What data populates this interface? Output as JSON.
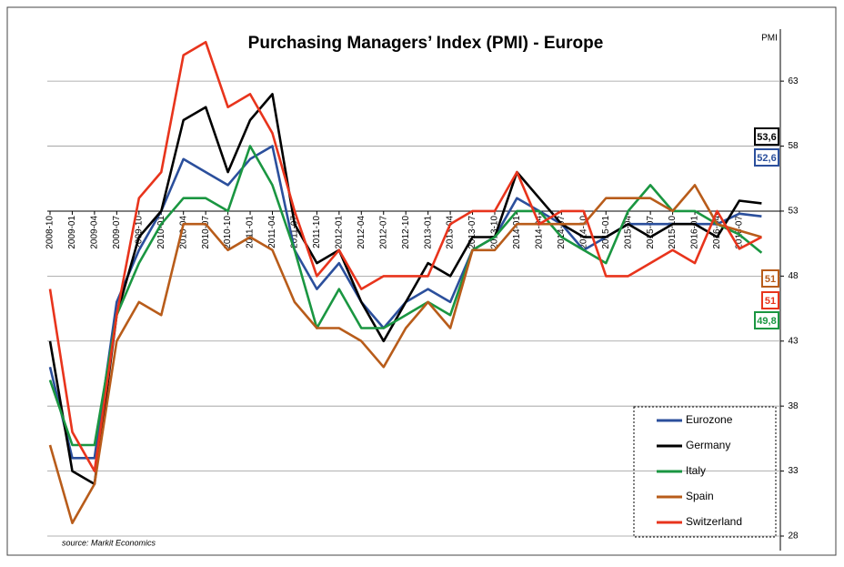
{
  "chart_data": {
    "type": "line",
    "title": "Purchasing Managers’ Index (PMI) - Europe",
    "y_label": "PMI",
    "source": "source:  Markit Economics",
    "categories": [
      "2008-10",
      "2009-01",
      "2009-04",
      "2009-07",
      "2009-10",
      "2010-01",
      "2010-04",
      "2010-07",
      "2010-10",
      "2011-01",
      "2011-04",
      "2011-07",
      "2011-10",
      "2012-01",
      "2012-04",
      "2012-07",
      "2012-10",
      "2013-01",
      "2013-04",
      "2013-07",
      "2013-10",
      "2014-01",
      "2014-04",
      "2014-07",
      "2014-10",
      "2015-01",
      "2015-04",
      "2015-07",
      "2015-10",
      "2016-01",
      "2016-04",
      "2016-07",
      null
    ],
    "series": [
      {
        "name": "Eurozone",
        "color": "#2b4f9c",
        "values": [
          41,
          34,
          34,
          46,
          50,
          53,
          57,
          56,
          55,
          57,
          58,
          50,
          47,
          49,
          46,
          44,
          46,
          47,
          46,
          50,
          51,
          54,
          53,
          52,
          50,
          51,
          52,
          52,
          52,
          52,
          52,
          52.8,
          52.6
        ],
        "value_labels": [
          null,
          null,
          null,
          null,
          null,
          null,
          null,
          null,
          null,
          null,
          null,
          null,
          null,
          null,
          null,
          null,
          null,
          null,
          null,
          null,
          null,
          null,
          null,
          null,
          null,
          null,
          null,
          null,
          null,
          null,
          null,
          null,
          "52,6"
        ]
      },
      {
        "name": "Germany",
        "color": "#000000",
        "values": [
          43,
          33,
          32,
          45,
          51,
          53,
          60,
          61,
          56,
          60,
          62,
          52,
          49,
          50,
          46,
          43,
          46,
          49,
          48,
          51,
          51,
          56,
          54,
          52,
          51,
          51,
          52,
          51,
          52,
          52,
          51,
          53.8,
          53.6
        ],
        "value_labels": [
          null,
          null,
          null,
          null,
          null,
          null,
          null,
          null,
          null,
          null,
          null,
          null,
          null,
          null,
          null,
          null,
          null,
          null,
          null,
          null,
          null,
          null,
          null,
          null,
          null,
          null,
          null,
          null,
          null,
          null,
          null,
          null,
          "53,6"
        ]
      },
      {
        "name": "Italy",
        "color": "#1a9641",
        "values": [
          40,
          35,
          35,
          45,
          49,
          52,
          54,
          54,
          53,
          58,
          55,
          50,
          44,
          47,
          44,
          44,
          45,
          46,
          45,
          50,
          51,
          53,
          53,
          51,
          50,
          49,
          53,
          55,
          53,
          53,
          52,
          51.2,
          49.8
        ],
        "value_labels": [
          null,
          null,
          null,
          null,
          null,
          null,
          null,
          null,
          null,
          null,
          null,
          null,
          null,
          null,
          null,
          null,
          null,
          null,
          null,
          null,
          null,
          null,
          null,
          null,
          null,
          null,
          null,
          null,
          null,
          null,
          null,
          null,
          "49,8"
        ]
      },
      {
        "name": "Spain",
        "color": "#b85c1a",
        "values": [
          35,
          29,
          32,
          43,
          46,
          45,
          52,
          52,
          50,
          51,
          50,
          46,
          44,
          44,
          43,
          41,
          44,
          46,
          44,
          50,
          50,
          52,
          52,
          52,
          52,
          54,
          54,
          54,
          53,
          55,
          52,
          51.5,
          51
        ],
        "value_labels": [
          null,
          null,
          null,
          null,
          null,
          null,
          null,
          null,
          null,
          null,
          null,
          null,
          null,
          null,
          null,
          null,
          null,
          null,
          null,
          null,
          null,
          null,
          null,
          null,
          null,
          null,
          null,
          null,
          null,
          null,
          null,
          null,
          "51"
        ]
      },
      {
        "name": "Switzerland",
        "color": "#e8341c",
        "values": [
          47,
          36,
          33,
          45,
          54,
          56,
          65,
          66,
          61,
          62,
          59,
          53,
          48,
          50,
          47,
          48,
          48,
          48,
          52,
          53,
          53,
          56,
          52,
          53,
          53,
          48,
          48,
          49,
          50,
          49,
          53,
          50.1,
          51
        ],
        "value_labels": [
          null,
          null,
          null,
          null,
          null,
          null,
          null,
          null,
          null,
          null,
          null,
          null,
          null,
          null,
          null,
          null,
          null,
          null,
          null,
          null,
          null,
          null,
          null,
          null,
          null,
          null,
          null,
          null,
          null,
          null,
          null,
          null,
          "51"
        ]
      }
    ],
    "ylim": [
      28,
      67
    ],
    "yticks": [
      28,
      33,
      38,
      43,
      48,
      53,
      58,
      63
    ],
    "x_axis_at": 53,
    "grid": true,
    "legend": "lower right"
  }
}
